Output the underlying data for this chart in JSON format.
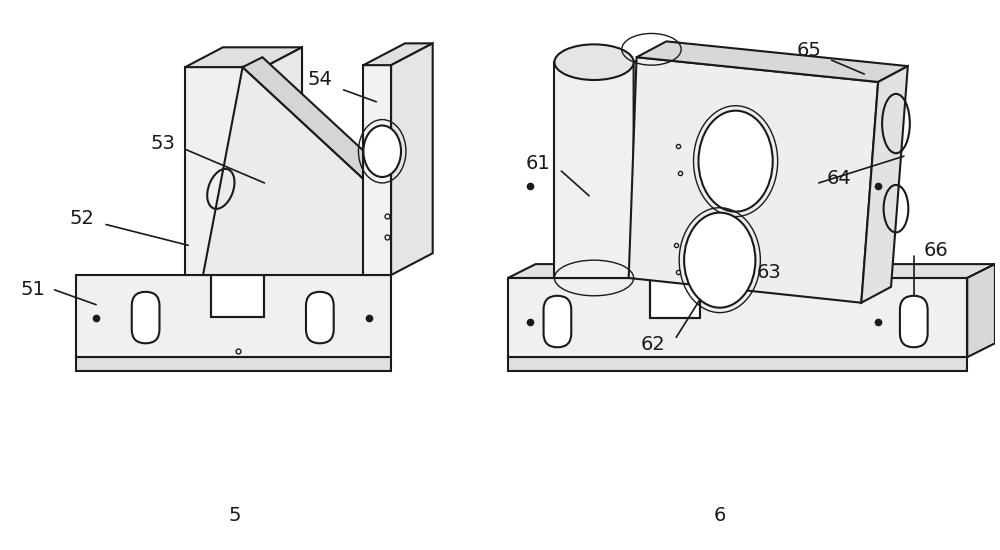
{
  "bg_color": "#ffffff",
  "lc": "#1a1a1a",
  "lw": 1.5,
  "lw_thin": 1.0,
  "fig_width": 10.0,
  "fig_height": 5.5,
  "dpi": 100
}
